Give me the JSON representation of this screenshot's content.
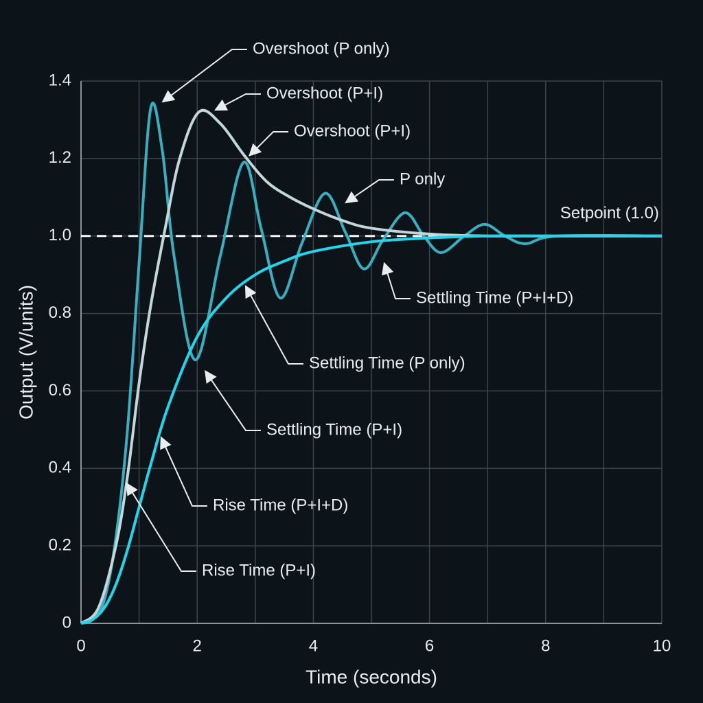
{
  "chart_data": {
    "type": "line",
    "x_label": "Time (seconds)",
    "y_label": "Output (V/units)",
    "xlim": [
      0,
      10
    ],
    "ylim": [
      0,
      1.4
    ],
    "xticks": [
      0,
      2,
      4,
      6,
      8,
      10
    ],
    "x_minor_ticks": [
      1,
      3,
      5,
      7,
      9
    ],
    "yticks": [
      0,
      0.2,
      0.4,
      0.6,
      0.8,
      {
        "value": 1,
        "label": "1.0"
      },
      1.2,
      1.4
    ],
    "grid": true,
    "setpoint": {
      "value": 1,
      "label": "Setpoint (1.0)"
    },
    "series": [
      {
        "color": "#3aaebf",
        "x": [
          0,
          0.2,
          0.4,
          0.6,
          0.8,
          1.0,
          1.2,
          1.4,
          1.6,
          1.97,
          2.4,
          2.8,
          3.1,
          3.43,
          3.8,
          4.2,
          4.55,
          4.87,
          5.2,
          5.58,
          5.9,
          6.2,
          6.6,
          6.95,
          7.3,
          7.65,
          8.2,
          10
        ],
        "values": [
          0,
          0.01,
          0.06,
          0.22,
          0.5,
          0.93,
          1.33,
          1.22,
          0.95,
          0.68,
          0.95,
          1.19,
          1.02,
          0.84,
          0.98,
          1.11,
          1.01,
          0.915,
          0.99,
          1.06,
          1.0,
          0.957,
          1.0,
          1.03,
          1.0,
          0.98,
          1.0,
          1.0
        ]
      },
      {
        "color": "#c3d6da",
        "x": [
          0,
          0.3,
          0.6,
          0.8,
          1.0,
          1.2,
          1.45,
          1.7,
          2.03,
          2.4,
          2.8,
          3.2,
          3.6,
          4.0,
          4.5,
          5.0,
          6.0,
          7.0,
          8.0,
          10
        ],
        "values": [
          0,
          0.04,
          0.2,
          0.38,
          0.62,
          0.82,
          1.02,
          1.2,
          1.32,
          1.29,
          1.21,
          1.14,
          1.1,
          1.07,
          1.04,
          1.02,
          1.005,
          1.0,
          1.0,
          1.0
        ]
      },
      {
        "color": "#27d3e8",
        "x": [
          0,
          0.2,
          0.4,
          0.6,
          0.8,
          1.0,
          1.2,
          1.5,
          2.0,
          2.5,
          3.0,
          3.5,
          4.0,
          5.0,
          6.0,
          7.0,
          8.0,
          10
        ],
        "values": [
          0,
          0.01,
          0.04,
          0.1,
          0.19,
          0.3,
          0.41,
          0.56,
          0.74,
          0.84,
          0.9,
          0.935,
          0.96,
          0.985,
          0.995,
          1.0,
          1.0,
          1.0
        ]
      }
    ],
    "annotations": [
      {
        "text": "Overshoot (P only)",
        "x": 1.35,
        "y": 1.34
      },
      {
        "text": "Overshoot (P+I)",
        "x": 2.25,
        "y": 1.32
      },
      {
        "text": "Overshoot (P+I)",
        "x": 2.85,
        "y": 1.2
      },
      {
        "text": "P only",
        "x": 4.5,
        "y": 1.08
      },
      {
        "text": "Settling Time (P+I+D)",
        "x": 5.2,
        "y": 0.94
      },
      {
        "text": "Settling Time (P only)",
        "x": 2.8,
        "y": 0.88
      },
      {
        "text": "Settling Time (P+I)",
        "x": 2.1,
        "y": 0.66
      },
      {
        "text": "Rise Time (P+I+D)",
        "x": 1.35,
        "y": 0.49
      },
      {
        "text": "Rise Time (P+I)",
        "x": 0.75,
        "y": 0.37
      }
    ]
  }
}
